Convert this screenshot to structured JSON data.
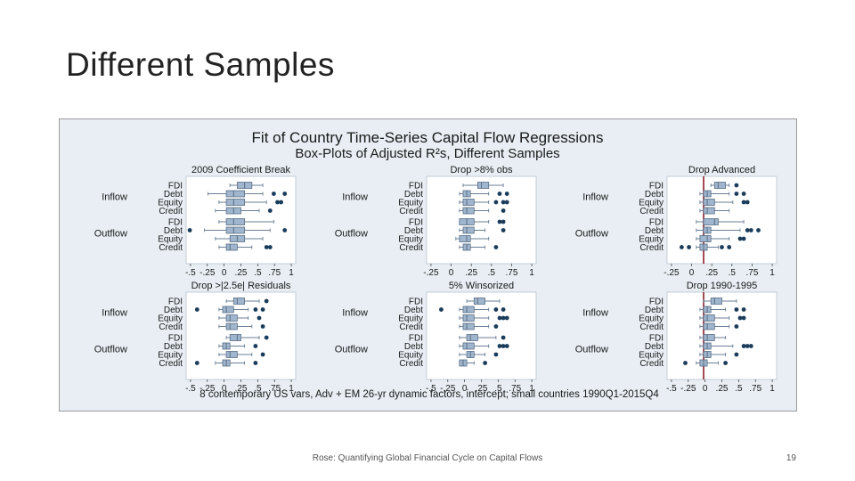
{
  "slide": {
    "title": "Different Samples",
    "footer": "Rose: Quantifying Global Financial Cycle on Capital Flows",
    "page_number": "19"
  },
  "colors": {
    "plot_background": "#e8eef3",
    "box_fill": "#9fb6ce",
    "box_stroke": "#5a6e85",
    "whisker": "#6b7f96",
    "outlier": "#1a3c5a",
    "zero_line": "#8b1c2b",
    "title_text": "#1a1a1a"
  },
  "chart_data": {
    "type": "box",
    "title": "Fit of Country Time-Series Capital Flow Regressions",
    "subtitle": "Box-Plots of Adjusted R²s, Different Samples",
    "note": "8 contemporary US vars, Adv + EM 26-yr dynamic factors, intercept; small countries 1990Q1-2015Q4",
    "group_labels": [
      "Inflow",
      "Outflow"
    ],
    "row_labels": [
      "FDI",
      "Debt",
      "Equity",
      "Credit"
    ],
    "panels": [
      {
        "title": "2009 Coefficient Break",
        "xlim": [
          -0.5,
          1
        ],
        "tick_labels": [
          "-.5",
          "-.25",
          "0",
          ".25",
          ".5",
          ".75",
          "1"
        ],
        "zero_line": false,
        "groups": [
          {
            "name": "Inflow",
            "rows": [
              {
                "label": "FDI",
                "whisker_low": 0.1,
                "q1": 0.2,
                "median": 0.3,
                "q3": 0.4,
                "whisker_high": 0.55,
                "outliers": []
              },
              {
                "label": "Debt",
                "whisker_low": -0.2,
                "q1": 0.05,
                "median": 0.15,
                "q3": 0.3,
                "whisker_high": 0.55,
                "outliers": [
                  0.7,
                  0.85
                ]
              },
              {
                "label": "Equity",
                "whisker_low": -0.05,
                "q1": 0.05,
                "median": 0.15,
                "q3": 0.3,
                "whisker_high": 0.6,
                "outliers": [
                  0.75,
                  0.8
                ]
              },
              {
                "label": "Credit",
                "whisker_low": -0.1,
                "q1": 0.05,
                "median": 0.15,
                "q3": 0.25,
                "whisker_high": 0.5,
                "outliers": [
                  0.65
                ]
              }
            ]
          },
          {
            "name": "Outflow",
            "rows": [
              {
                "label": "FDI",
                "whisker_low": -0.05,
                "q1": 0.05,
                "median": 0.15,
                "q3": 0.3,
                "whisker_high": 0.7,
                "outliers": []
              },
              {
                "label": "Debt",
                "whisker_low": -0.25,
                "q1": 0.05,
                "median": 0.15,
                "q3": 0.3,
                "whisker_high": 0.65,
                "outliers": [
                  -0.45,
                  0.85
                ]
              },
              {
                "label": "Equity",
                "whisker_low": -0.1,
                "q1": 0.1,
                "median": 0.2,
                "q3": 0.3,
                "whisker_high": 0.55,
                "outliers": []
              },
              {
                "label": "Credit",
                "whisker_low": -0.05,
                "q1": 0.05,
                "median": 0.1,
                "q3": 0.2,
                "whisker_high": 0.4,
                "outliers": [
                  0.6,
                  0.65
                ]
              }
            ]
          }
        ]
      },
      {
        "title": "Drop >8% obs",
        "xlim": [
          -0.5,
          1
        ],
        "tick_labels": [
          "-.25",
          "0",
          ".25",
          ".5",
          ".75",
          "1"
        ],
        "zero_line": false,
        "groups": [
          {
            "name": "Inflow",
            "rows": [
              {
                "label": "FDI",
                "whisker_low": 0.0,
                "q1": 0.2,
                "median": 0.25,
                "q3": 0.35,
                "whisker_high": 0.55,
                "outliers": []
              },
              {
                "label": "Debt",
                "whisker_low": -0.05,
                "q1": 0.0,
                "median": 0.05,
                "q3": 0.1,
                "whisker_high": 0.35,
                "outliers": [
                  0.5,
                  0.6
                ]
              },
              {
                "label": "Equity",
                "whisker_low": -0.05,
                "q1": 0.0,
                "median": 0.05,
                "q3": 0.15,
                "whisker_high": 0.35,
                "outliers": [
                  0.45,
                  0.55,
                  0.6
                ]
              },
              {
                "label": "Credit",
                "whisker_low": -0.05,
                "q1": 0.0,
                "median": 0.05,
                "q3": 0.15,
                "whisker_high": 0.35,
                "outliers": [
                  0.55
                ]
              }
            ]
          },
          {
            "name": "Outflow",
            "rows": [
              {
                "label": "FDI",
                "whisker_low": -0.05,
                "q1": -0.05,
                "median": 0.05,
                "q3": 0.15,
                "whisker_high": 0.35,
                "outliers": [
                  0.5,
                  0.55
                ]
              },
              {
                "label": "Debt",
                "whisker_low": -0.05,
                "q1": 0.0,
                "median": 0.05,
                "q3": 0.15,
                "whisker_high": 0.3,
                "outliers": [
                  0.55
                ]
              },
              {
                "label": "Equity",
                "whisker_low": -0.1,
                "q1": -0.05,
                "median": 0.05,
                "q3": 0.1,
                "whisker_high": 0.35,
                "outliers": []
              },
              {
                "label": "Credit",
                "whisker_low": -0.05,
                "q1": 0.0,
                "median": 0.05,
                "q3": 0.1,
                "whisker_high": 0.3,
                "outliers": [
                  0.45
                ]
              }
            ]
          }
        ]
      },
      {
        "title": "Drop Advanced",
        "xlim": [
          -0.5,
          1
        ],
        "tick_labels": [
          "-.25",
          "0",
          ".25",
          ".5",
          ".75",
          "1"
        ],
        "zero_line": true,
        "groups": [
          {
            "name": "Inflow",
            "rows": [
              {
                "label": "FDI",
                "whisker_low": 0.1,
                "q1": 0.15,
                "median": 0.2,
                "q3": 0.3,
                "whisker_high": 0.35,
                "outliers": [
                  0.45
                ]
              },
              {
                "label": "Debt",
                "whisker_low": -0.05,
                "q1": 0.0,
                "median": 0.05,
                "q3": 0.1,
                "whisker_high": 0.35,
                "outliers": [
                  0.45,
                  0.55
                ]
              },
              {
                "label": "Equity",
                "whisker_low": -0.05,
                "q1": 0.0,
                "median": 0.05,
                "q3": 0.15,
                "whisker_high": 0.4,
                "outliers": [
                  0.55,
                  0.6
                ]
              },
              {
                "label": "Credit",
                "whisker_low": -0.05,
                "q1": 0.0,
                "median": 0.05,
                "q3": 0.15,
                "whisker_high": 0.35,
                "outliers": []
              }
            ]
          },
          {
            "name": "Outflow",
            "rows": [
              {
                "label": "FDI",
                "whisker_low": -0.1,
                "q1": 0.0,
                "median": 0.15,
                "q3": 0.2,
                "whisker_high": 0.55,
                "outliers": []
              },
              {
                "label": "Debt",
                "whisker_low": -0.1,
                "q1": 0.0,
                "median": 0.05,
                "q3": 0.1,
                "whisker_high": 0.5,
                "outliers": [
                  0.6,
                  0.65,
                  0.75
                ]
              },
              {
                "label": "Equity",
                "whisker_low": -0.1,
                "q1": -0.05,
                "median": 0.05,
                "q3": 0.1,
                "whisker_high": 0.35,
                "outliers": [
                  0.5,
                  0.55
                ]
              },
              {
                "label": "Credit",
                "whisker_low": -0.1,
                "q1": -0.05,
                "median": 0.0,
                "q3": 0.05,
                "whisker_high": 0.2,
                "outliers": [
                  -0.3,
                  -0.2,
                  0.25,
                  0.35
                ]
              }
            ]
          }
        ]
      },
      {
        "title": "Drop >|2.5e| Residuals",
        "xlim": [
          -0.5,
          1
        ],
        "tick_labels": [
          "-.5",
          "-.25",
          "0",
          ".25",
          ".5",
          ".75",
          "1"
        ],
        "zero_line": false,
        "groups": [
          {
            "name": "Inflow",
            "rows": [
              {
                "label": "FDI",
                "whisker_low": 0.05,
                "q1": 0.15,
                "median": 0.2,
                "q3": 0.3,
                "whisker_high": 0.5,
                "outliers": [
                  0.6
                ]
              },
              {
                "label": "Debt",
                "whisker_low": -0.05,
                "q1": 0.0,
                "median": 0.05,
                "q3": 0.15,
                "whisker_high": 0.35,
                "outliers": [
                  -0.35,
                  0.45,
                  0.55
                ]
              },
              {
                "label": "Equity",
                "whisker_low": -0.05,
                "q1": 0.05,
                "median": 0.1,
                "q3": 0.2,
                "whisker_high": 0.35,
                "outliers": [
                  0.5
                ]
              },
              {
                "label": "Credit",
                "whisker_low": -0.05,
                "q1": 0.05,
                "median": 0.1,
                "q3": 0.2,
                "whisker_high": 0.4,
                "outliers": [
                  0.55
                ]
              }
            ]
          },
          {
            "name": "Outflow",
            "rows": [
              {
                "label": "FDI",
                "whisker_low": 0.05,
                "q1": 0.1,
                "median": 0.2,
                "q3": 0.25,
                "whisker_high": 0.5,
                "outliers": [
                  0.6
                ]
              },
              {
                "label": "Debt",
                "whisker_low": -0.05,
                "q1": 0.0,
                "median": 0.05,
                "q3": 0.1,
                "whisker_high": 0.3,
                "outliers": [
                  0.45
                ]
              },
              {
                "label": "Equity",
                "whisker_low": -0.05,
                "q1": 0.05,
                "median": 0.1,
                "q3": 0.2,
                "whisker_high": 0.4,
                "outliers": [
                  0.55
                ]
              },
              {
                "label": "Credit",
                "whisker_low": -0.1,
                "q1": 0.0,
                "median": 0.05,
                "q3": 0.1,
                "whisker_high": 0.3,
                "outliers": [
                  -0.35,
                  0.45
                ]
              }
            ]
          }
        ]
      },
      {
        "title": "5% Winsorized",
        "xlim": [
          -0.5,
          1
        ],
        "tick_labels": [
          "-.5",
          "-.25",
          "0",
          ".25",
          ".5",
          ".75",
          "1"
        ],
        "zero_line": false,
        "groups": [
          {
            "name": "Inflow",
            "rows": [
              {
                "label": "FDI",
                "whisker_low": 0.05,
                "q1": 0.15,
                "median": 0.2,
                "q3": 0.3,
                "whisker_high": 0.5,
                "outliers": []
              },
              {
                "label": "Debt",
                "whisker_low": -0.05,
                "q1": 0.0,
                "median": 0.05,
                "q3": 0.15,
                "whisker_high": 0.35,
                "outliers": [
                  -0.3,
                  0.45,
                  0.55
                ]
              },
              {
                "label": "Equity",
                "whisker_low": -0.05,
                "q1": 0.0,
                "median": 0.05,
                "q3": 0.15,
                "whisker_high": 0.35,
                "outliers": [
                  0.5,
                  0.55,
                  0.6
                ]
              },
              {
                "label": "Credit",
                "whisker_low": -0.05,
                "q1": 0.0,
                "median": 0.05,
                "q3": 0.15,
                "whisker_high": 0.35,
                "outliers": [
                  0.45
                ]
              }
            ]
          },
          {
            "name": "Outflow",
            "rows": [
              {
                "label": "FDI",
                "whisker_low": -0.05,
                "q1": 0.05,
                "median": 0.1,
                "q3": 0.2,
                "whisker_high": 0.45,
                "outliers": [
                  0.55
                ]
              },
              {
                "label": "Debt",
                "whisker_low": -0.05,
                "q1": 0.0,
                "median": 0.05,
                "q3": 0.15,
                "whisker_high": 0.35,
                "outliers": [
                  0.5,
                  0.55,
                  0.6
                ]
              },
              {
                "label": "Equity",
                "whisker_low": -0.05,
                "q1": 0.05,
                "median": 0.1,
                "q3": 0.15,
                "whisker_high": 0.3,
                "outliers": [
                  0.45
                ]
              },
              {
                "label": "Credit",
                "whisker_low": -0.05,
                "q1": -0.05,
                "median": 0.0,
                "q3": 0.05,
                "whisker_high": 0.15,
                "outliers": [
                  0.3
                ]
              }
            ]
          }
        ]
      },
      {
        "title": "Drop 1990-1995",
        "xlim": [
          -0.5,
          1
        ],
        "tick_labels": [
          "-.5",
          "-.25",
          "0",
          ".25",
          ".5",
          ".75",
          "1"
        ],
        "zero_line": true,
        "groups": [
          {
            "name": "Inflow",
            "rows": [
              {
                "label": "FDI",
                "whisker_low": 0.0,
                "q1": 0.1,
                "median": 0.15,
                "q3": 0.25,
                "whisker_high": 0.45,
                "outliers": []
              },
              {
                "label": "Debt",
                "whisker_low": -0.05,
                "q1": 0.0,
                "median": 0.05,
                "q3": 0.1,
                "whisker_high": 0.3,
                "outliers": [
                  0.45,
                  0.55
                ]
              },
              {
                "label": "Equity",
                "whisker_low": -0.05,
                "q1": 0.0,
                "median": 0.05,
                "q3": 0.15,
                "whisker_high": 0.35,
                "outliers": [
                  0.5,
                  0.55
                ]
              },
              {
                "label": "Credit",
                "whisker_low": -0.05,
                "q1": 0.0,
                "median": 0.05,
                "q3": 0.15,
                "whisker_high": 0.35,
                "outliers": [
                  0.45
                ]
              }
            ]
          },
          {
            "name": "Outflow",
            "rows": [
              {
                "label": "FDI",
                "whisker_low": -0.05,
                "q1": 0.0,
                "median": 0.05,
                "q3": 0.15,
                "whisker_high": 0.3,
                "outliers": []
              },
              {
                "label": "Debt",
                "whisker_low": -0.05,
                "q1": 0.0,
                "median": 0.05,
                "q3": 0.1,
                "whisker_high": 0.4,
                "outliers": [
                  0.55,
                  0.6,
                  0.65
                ]
              },
              {
                "label": "Equity",
                "whisker_low": -0.05,
                "q1": 0.0,
                "median": 0.05,
                "q3": 0.1,
                "whisker_high": 0.3,
                "outliers": [
                  0.45
                ]
              },
              {
                "label": "Credit",
                "whisker_low": -0.1,
                "q1": -0.05,
                "median": 0.0,
                "q3": 0.05,
                "whisker_high": 0.2,
                "outliers": [
                  -0.25,
                  0.3
                ]
              }
            ]
          }
        ]
      }
    ]
  }
}
